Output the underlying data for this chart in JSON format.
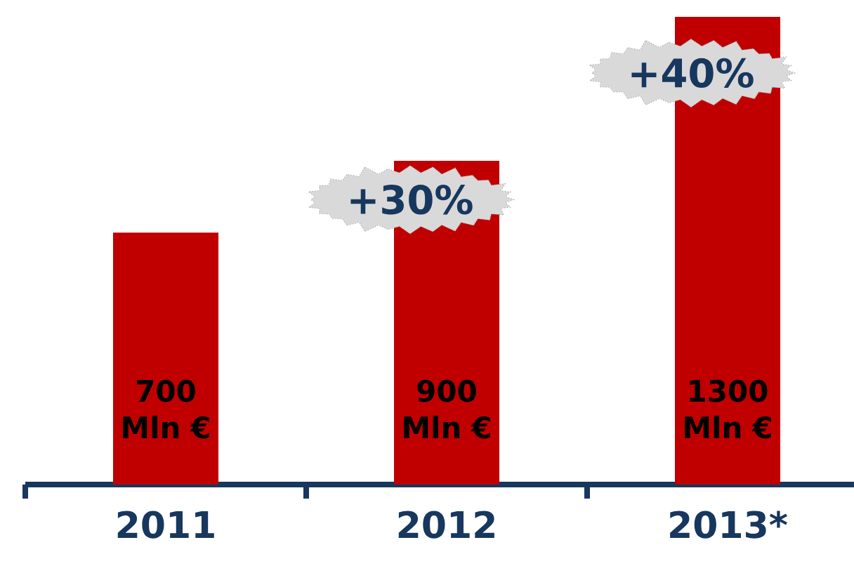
{
  "chart_data": {
    "type": "bar",
    "categories": [
      "2011",
      "2012",
      "2013*"
    ],
    "values": [
      700,
      900,
      1300
    ],
    "value_labels": [
      "700 Mln €",
      "900 Mln €",
      "1300 Mln €"
    ],
    "color": "#c00000",
    "annotations": [
      "+30%",
      "+40%"
    ]
  }
}
